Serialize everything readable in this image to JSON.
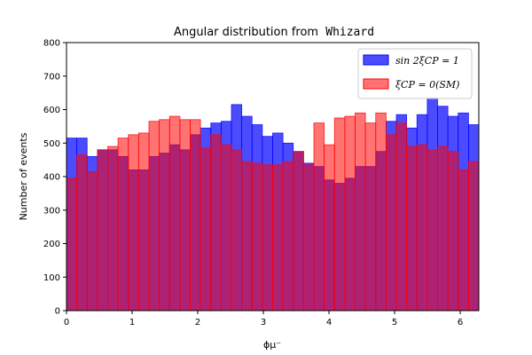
{
  "chart_data": {
    "type": "bar",
    "title_prefix": "Angular distribution from",
    "title_code": "Whizard",
    "xlabel": "ϕμ⁻",
    "ylabel": "Number of events",
    "xlim": [
      0,
      6.283
    ],
    "ylim": [
      0,
      800
    ],
    "x_ticks": [
      0,
      1,
      2,
      3,
      4,
      5,
      6
    ],
    "y_ticks": [
      0,
      100,
      200,
      300,
      400,
      500,
      600,
      700,
      800
    ],
    "bin_width": 0.15708,
    "grid": false,
    "legend_position": "top-right",
    "series": [
      {
        "name": "sin 2ξCP = 1",
        "color": "#0000ff",
        "alpha": 0.7,
        "values": [
          515,
          515,
          460,
          480,
          480,
          460,
          420,
          420,
          460,
          470,
          495,
          480,
          525,
          545,
          560,
          565,
          615,
          580,
          555,
          520,
          530,
          500,
          475,
          440,
          430,
          390,
          380,
          395,
          430,
          430,
          475,
          565,
          585,
          545,
          585,
          635,
          610,
          580,
          590,
          555
        ]
      },
      {
        "name": "ξCP = 0(SM)",
        "color": "#ff0000",
        "alpha": 0.55,
        "values": [
          395,
          465,
          415,
          480,
          490,
          515,
          525,
          530,
          565,
          570,
          580,
          570,
          570,
          485,
          525,
          495,
          480,
          445,
          440,
          435,
          435,
          445,
          475,
          435,
          560,
          495,
          575,
          580,
          590,
          560,
          590,
          525,
          560,
          490,
          495,
          480,
          490,
          475,
          420,
          445
        ]
      }
    ]
  }
}
